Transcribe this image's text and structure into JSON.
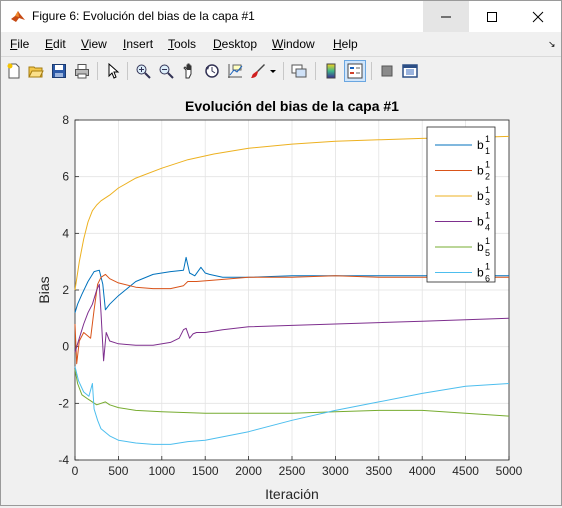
{
  "window": {
    "title": "Figure 6: Evolución del bias de la capa #1"
  },
  "menu": {
    "items": [
      {
        "first": "F",
        "rest": "ile"
      },
      {
        "first": "E",
        "rest": "dit"
      },
      {
        "first": "V",
        "rest": "iew"
      },
      {
        "first": "I",
        "rest": "nsert"
      },
      {
        "first": "T",
        "rest": "ools"
      },
      {
        "first": "D",
        "rest": "esktop"
      },
      {
        "first": "W",
        "rest": "indow"
      },
      {
        "first": "H",
        "rest": "elp"
      }
    ]
  },
  "toolbar": {
    "icons": [
      "new-figure-icon",
      "open-file-icon",
      "save-icon",
      "print-icon",
      "edit-plot-icon",
      "zoom-in-icon",
      "zoom-out-icon",
      "pan-icon",
      "rotate-3d-icon",
      "data-cursor-icon",
      "brush-icon",
      "link-plot-icon",
      "insert-colorbar-icon",
      "insert-legend-icon",
      "hide-plot-tools-icon",
      "show-plot-tools-icon"
    ]
  },
  "chart_data": {
    "type": "line",
    "title": "Evolución del bias de la capa #1",
    "xlabel": "Iteración",
    "ylabel": "Bias",
    "xlim": [
      0,
      5000
    ],
    "ylim": [
      -4,
      8
    ],
    "xticks": [
      0,
      500,
      1000,
      1500,
      2000,
      2500,
      3000,
      3500,
      4000,
      4500,
      5000
    ],
    "yticks": [
      -4,
      -2,
      0,
      2,
      4,
      6,
      8
    ],
    "grid": true,
    "legend_position": "top-right",
    "series": [
      {
        "name": "b",
        "sub": "1",
        "sup": "1",
        "color": "#0072bd",
        "x": [
          0,
          30,
          80,
          150,
          220,
          280,
          320,
          350,
          400,
          500,
          700,
          900,
          1100,
          1250,
          1280,
          1320,
          1380,
          1450,
          1500,
          1550,
          1700,
          2000,
          2500,
          3000,
          3500,
          4000,
          4500,
          5000
        ],
        "y": [
          1.2,
          1.5,
          1.85,
          2.3,
          2.65,
          2.7,
          2.2,
          1.3,
          1.5,
          1.8,
          2.3,
          2.55,
          2.65,
          2.7,
          3.15,
          2.6,
          2.5,
          2.8,
          2.6,
          2.55,
          2.45,
          2.45,
          2.5,
          2.5,
          2.5,
          2.5,
          2.5,
          2.5
        ]
      },
      {
        "name": "b",
        "sub": "2",
        "sup": "1",
        "color": "#d95319",
        "x": [
          0,
          20,
          50,
          100,
          180,
          220,
          260,
          300,
          350,
          400,
          500,
          700,
          900,
          1100,
          1250,
          1300,
          1400,
          1600,
          2000,
          2500,
          3000,
          3500,
          4000,
          4500,
          5000
        ],
        "y": [
          0.8,
          -0.6,
          0.2,
          0.5,
          0.3,
          1.3,
          2.2,
          2.45,
          2.55,
          2.4,
          2.25,
          2.1,
          2.05,
          2.05,
          2.15,
          2.3,
          2.3,
          2.35,
          2.45,
          2.45,
          2.5,
          2.45,
          2.45,
          2.45,
          2.45
        ]
      },
      {
        "name": "b",
        "sub": "3",
        "sup": "1",
        "color": "#edb120",
        "x": [
          0,
          50,
          100,
          150,
          200,
          250,
          300,
          400,
          500,
          700,
          1000,
          1300,
          1600,
          2000,
          2500,
          3000,
          3500,
          4000,
          4500,
          5000
        ],
        "y": [
          2.0,
          3.0,
          3.8,
          4.4,
          4.8,
          5.0,
          5.15,
          5.35,
          5.6,
          5.95,
          6.3,
          6.6,
          6.8,
          7.0,
          7.15,
          7.25,
          7.3,
          7.35,
          7.38,
          7.42
        ]
      },
      {
        "name": "b",
        "sub": "4",
        "sup": "1",
        "color": "#7e2f8e",
        "x": [
          0,
          50,
          100,
          150,
          200,
          250,
          280,
          300,
          330,
          360,
          400,
          500,
          700,
          900,
          1100,
          1200,
          1250,
          1280,
          1320,
          1360,
          1400,
          1500,
          1700,
          2000,
          2500,
          3000,
          3500,
          4000,
          4500,
          5000
        ],
        "y": [
          -0.2,
          0.3,
          0.8,
          1.2,
          1.5,
          2.0,
          2.2,
          1.2,
          -0.5,
          0.5,
          0.2,
          0.1,
          0.05,
          0.05,
          0.15,
          0.3,
          0.6,
          0.65,
          0.3,
          0.45,
          0.5,
          0.5,
          0.6,
          0.7,
          0.75,
          0.8,
          0.85,
          0.9,
          0.95,
          1.0
        ]
      },
      {
        "name": "b",
        "sub": "5",
        "sup": "1",
        "color": "#77ac30",
        "x": [
          0,
          30,
          80,
          150,
          250,
          350,
          400,
          500,
          700,
          1000,
          1500,
          2000,
          2500,
          3000,
          3500,
          4000,
          4500,
          5000
        ],
        "y": [
          -0.8,
          -1.3,
          -1.7,
          -1.85,
          -2.05,
          -1.95,
          -2.05,
          -2.15,
          -2.25,
          -2.3,
          -2.35,
          -2.35,
          -2.35,
          -2.3,
          -2.25,
          -2.25,
          -2.35,
          -2.45
        ]
      },
      {
        "name": "b",
        "sub": "6",
        "sup": "1",
        "color": "#4dbeee",
        "x": [
          0,
          40,
          100,
          160,
          200,
          220,
          260,
          300,
          400,
          500,
          700,
          900,
          1100,
          1300,
          1500,
          2000,
          2500,
          3000,
          3500,
          4000,
          4500,
          5000
        ],
        "y": [
          -0.7,
          -1.2,
          -1.6,
          -1.75,
          -1.3,
          -2.2,
          -2.6,
          -2.9,
          -3.15,
          -3.3,
          -3.4,
          -3.45,
          -3.45,
          -3.35,
          -3.3,
          -3.0,
          -2.6,
          -2.25,
          -1.95,
          -1.65,
          -1.4,
          -1.3
        ]
      }
    ]
  }
}
